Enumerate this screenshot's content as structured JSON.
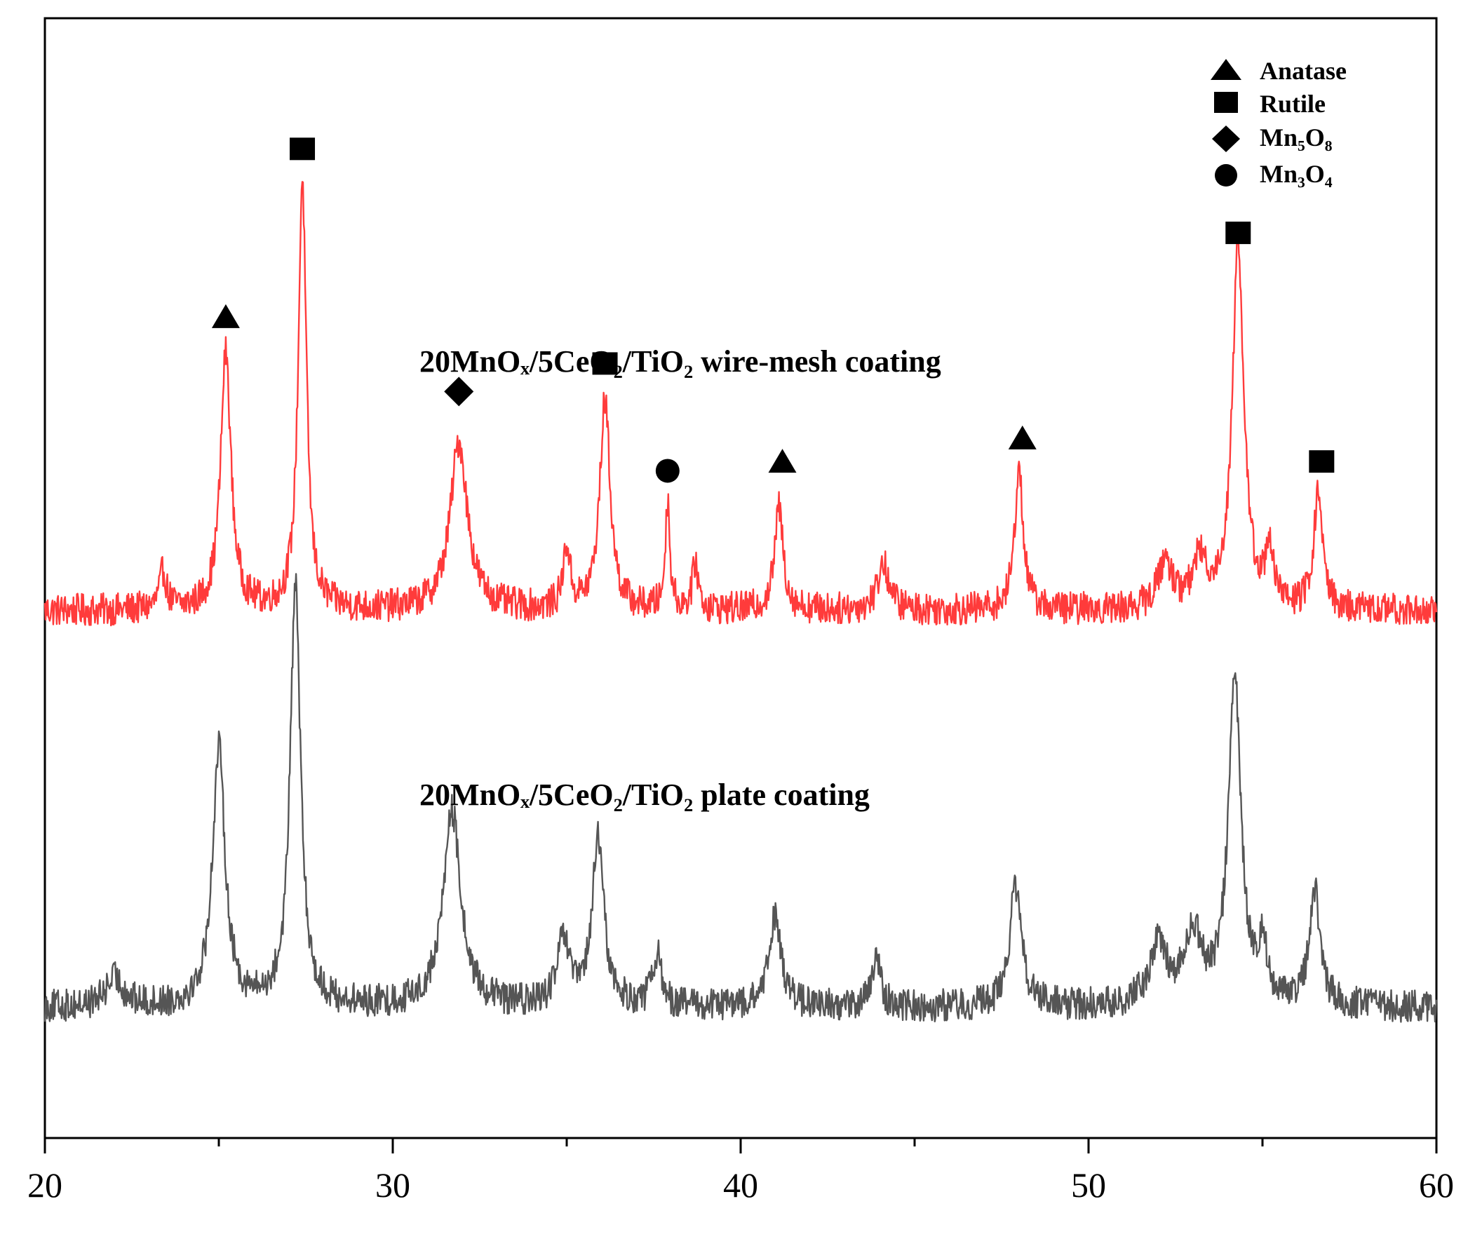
{
  "chart_data": {
    "type": "line",
    "title": "",
    "xlabel": "",
    "ylabel": "",
    "xlim": [
      20,
      60
    ],
    "grid": false,
    "x_ticks": [
      "20",
      "30",
      "40",
      "50",
      "60"
    ],
    "legend": {
      "placement": "top-right",
      "entries": [
        {
          "marker": "triangle",
          "name": "Anatase"
        },
        {
          "marker": "square",
          "name": "Rutile"
        },
        {
          "marker": "diamond",
          "name": "Mn₅O₈"
        },
        {
          "marker": "circle",
          "name": "Mn₃O₄"
        }
      ]
    },
    "series": [
      {
        "name": "wire-mesh",
        "label": "20MnOₓ/5CeO₂/TiO₂ wire-mesh coating",
        "color": "#ff3b3b",
        "baseline": 11.3,
        "noise": 0.35,
        "peaks": [
          {
            "x": 23.4,
            "h": 0.8,
            "w": 0.12
          },
          {
            "x": 25.2,
            "h": 5.5,
            "w": 0.18
          },
          {
            "x": 27.4,
            "h": 9.2,
            "w": 0.14
          },
          {
            "x": 31.9,
            "h": 3.6,
            "w": 0.3
          },
          {
            "x": 35.0,
            "h": 1.3,
            "w": 0.12
          },
          {
            "x": 36.1,
            "h": 4.5,
            "w": 0.18
          },
          {
            "x": 37.9,
            "h": 2.3,
            "w": 0.08
          },
          {
            "x": 38.7,
            "h": 1.0,
            "w": 0.1
          },
          {
            "x": 41.1,
            "h": 2.2,
            "w": 0.15
          },
          {
            "x": 44.1,
            "h": 1.0,
            "w": 0.2
          },
          {
            "x": 48.0,
            "h": 3.0,
            "w": 0.15
          },
          {
            "x": 52.2,
            "h": 1.0,
            "w": 0.25
          },
          {
            "x": 53.2,
            "h": 1.0,
            "w": 0.25
          },
          {
            "x": 54.3,
            "h": 7.8,
            "w": 0.2
          },
          {
            "x": 55.2,
            "h": 1.3,
            "w": 0.12
          },
          {
            "x": 56.6,
            "h": 2.5,
            "w": 0.15
          }
        ]
      },
      {
        "name": "plate",
        "label": "20MnOₓ/5CeO₂/TiO₂ plate coating",
        "color": "#555555",
        "baseline": 2.8,
        "noise": 0.35,
        "peaks": [
          {
            "x": 22.0,
            "h": 0.6,
            "w": 0.3
          },
          {
            "x": 25.0,
            "h": 5.5,
            "w": 0.22
          },
          {
            "x": 27.2,
            "h": 9.0,
            "w": 0.18
          },
          {
            "x": 31.7,
            "h": 4.2,
            "w": 0.3
          },
          {
            "x": 34.9,
            "h": 1.4,
            "w": 0.2
          },
          {
            "x": 35.9,
            "h": 3.6,
            "w": 0.2
          },
          {
            "x": 37.6,
            "h": 1.1,
            "w": 0.15
          },
          {
            "x": 41.0,
            "h": 2.0,
            "w": 0.2
          },
          {
            "x": 43.9,
            "h": 1.0,
            "w": 0.15
          },
          {
            "x": 47.9,
            "h": 2.6,
            "w": 0.2
          },
          {
            "x": 52.0,
            "h": 1.3,
            "w": 0.3
          },
          {
            "x": 53.0,
            "h": 1.5,
            "w": 0.3
          },
          {
            "x": 54.2,
            "h": 7.0,
            "w": 0.22
          },
          {
            "x": 55.0,
            "h": 1.2,
            "w": 0.15
          },
          {
            "x": 56.5,
            "h": 2.5,
            "w": 0.18
          }
        ]
      }
    ],
    "annotations": [
      {
        "marker": "triangle",
        "x": 25.2,
        "y": 17.6
      },
      {
        "marker": "square",
        "x": 27.4,
        "y": 21.2
      },
      {
        "marker": "diamond",
        "x": 31.9,
        "y": 16.0
      },
      {
        "marker": "square",
        "x": 36.1,
        "y": 16.6
      },
      {
        "marker": "circle",
        "x": 37.9,
        "y": 14.3
      },
      {
        "marker": "triangle",
        "x": 41.2,
        "y": 14.5
      },
      {
        "marker": "triangle",
        "x": 48.1,
        "y": 15.0
      },
      {
        "marker": "square",
        "x": 54.3,
        "y": 19.4
      },
      {
        "marker": "square",
        "x": 56.7,
        "y": 14.5
      }
    ]
  }
}
